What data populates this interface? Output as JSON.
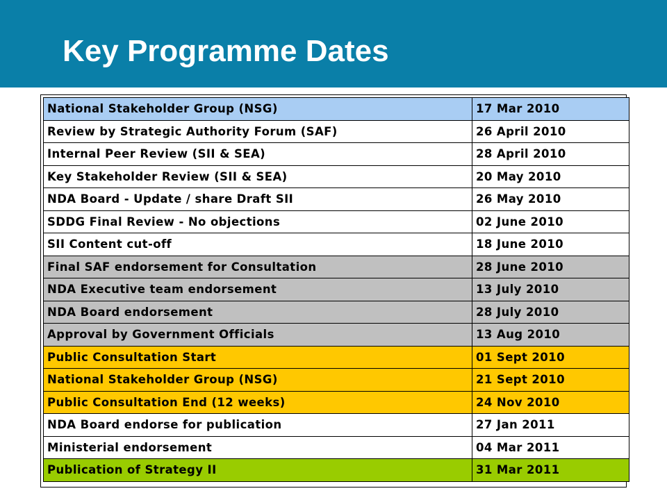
{
  "slide": {
    "title": "Key Programme Dates"
  },
  "colors": {
    "header_band": "#0a7fa8",
    "blue_row": "#a9cdf3",
    "grey_row": "#c0c0c0",
    "yellow_row": "#ffc800",
    "green_row": "#99cc00"
  },
  "rows": [
    {
      "event": "National Stakeholder Group (NSG)",
      "date": "17 Mar 2010",
      "color": "blue"
    },
    {
      "event": "Review by Strategic Authority Forum (SAF)",
      "date": "26 April 2010",
      "color": "white"
    },
    {
      "event": "Internal Peer Review (SII & SEA)",
      "date": "28 April 2010",
      "color": "white"
    },
    {
      "event": "Key Stakeholder Review (SII & SEA)",
      "date": "20 May 2010",
      "color": "white"
    },
    {
      "event": "NDA Board - Update / share Draft SII",
      "date": "26 May 2010",
      "color": "white"
    },
    {
      "event": "SDDG Final Review - No objections",
      "date": "02 June 2010",
      "color": "white"
    },
    {
      "event": "SII Content cut-off",
      "date": "18 June 2010",
      "color": "white"
    },
    {
      "event": "Final SAF endorsement for Consultation",
      "date": "28 June 2010",
      "color": "grey"
    },
    {
      "event": "NDA Executive team endorsement",
      "date": "13 July 2010",
      "color": "grey"
    },
    {
      "event": "NDA Board endorsement",
      "date": "28 July 2010",
      "color": "grey"
    },
    {
      "event": "Approval by Government Officials",
      "date": "13 Aug 2010",
      "color": "grey"
    },
    {
      "event": "Public Consultation Start",
      "date": "01 Sept 2010",
      "color": "yellow"
    },
    {
      "event": "National Stakeholder Group (NSG)",
      "date": "21 Sept 2010",
      "color": "yellow"
    },
    {
      "event": "Public Consultation End (12 weeks)",
      "date": "24 Nov 2010",
      "color": "yellow"
    },
    {
      "event": "NDA Board endorse for publication",
      "date": "27 Jan 2011",
      "color": "white"
    },
    {
      "event": "Ministerial endorsement",
      "date": "04 Mar 2011",
      "color": "white"
    },
    {
      "event": "Publication of Strategy II",
      "date": "31 Mar 2011",
      "color": "green"
    }
  ]
}
